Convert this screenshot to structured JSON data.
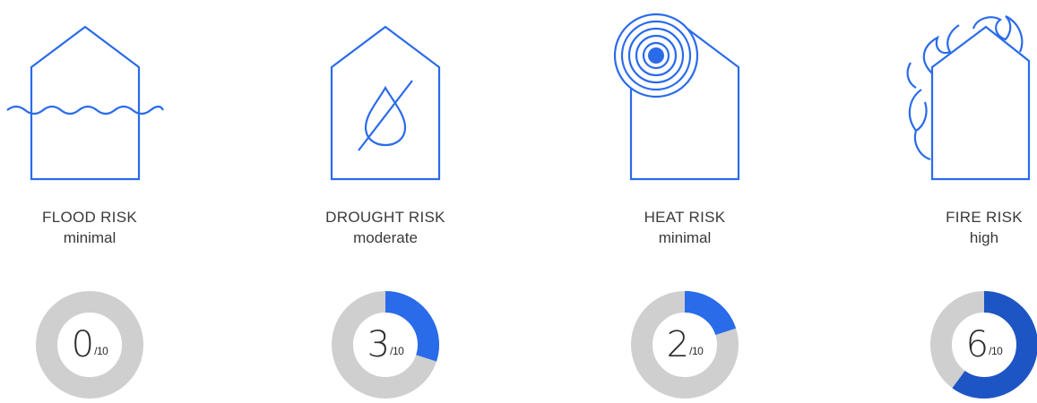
{
  "colors": {
    "accent": "#2a6bea",
    "accent_dark": "#1e55c4",
    "ring": "#cfcfcf",
    "text": "#3a3a3a"
  },
  "cards": [
    {
      "title": "FLOOD RISK",
      "level": "minimal",
      "score": "0",
      "denominator": "/10",
      "fraction": 0.0,
      "icon": "house-flood-icon"
    },
    {
      "title": "DROUGHT RISK",
      "level": "moderate",
      "score": "3",
      "denominator": "/10",
      "fraction": 0.3,
      "icon": "house-drought-icon"
    },
    {
      "title": "HEAT RISK",
      "level": "minimal",
      "score": "2",
      "denominator": "/10",
      "fraction": 0.2,
      "icon": "house-heat-icon"
    },
    {
      "title": "FIRE RISK",
      "level": "high",
      "score": "6",
      "denominator": "/10",
      "fraction": 0.6,
      "icon": "house-fire-icon"
    }
  ]
}
